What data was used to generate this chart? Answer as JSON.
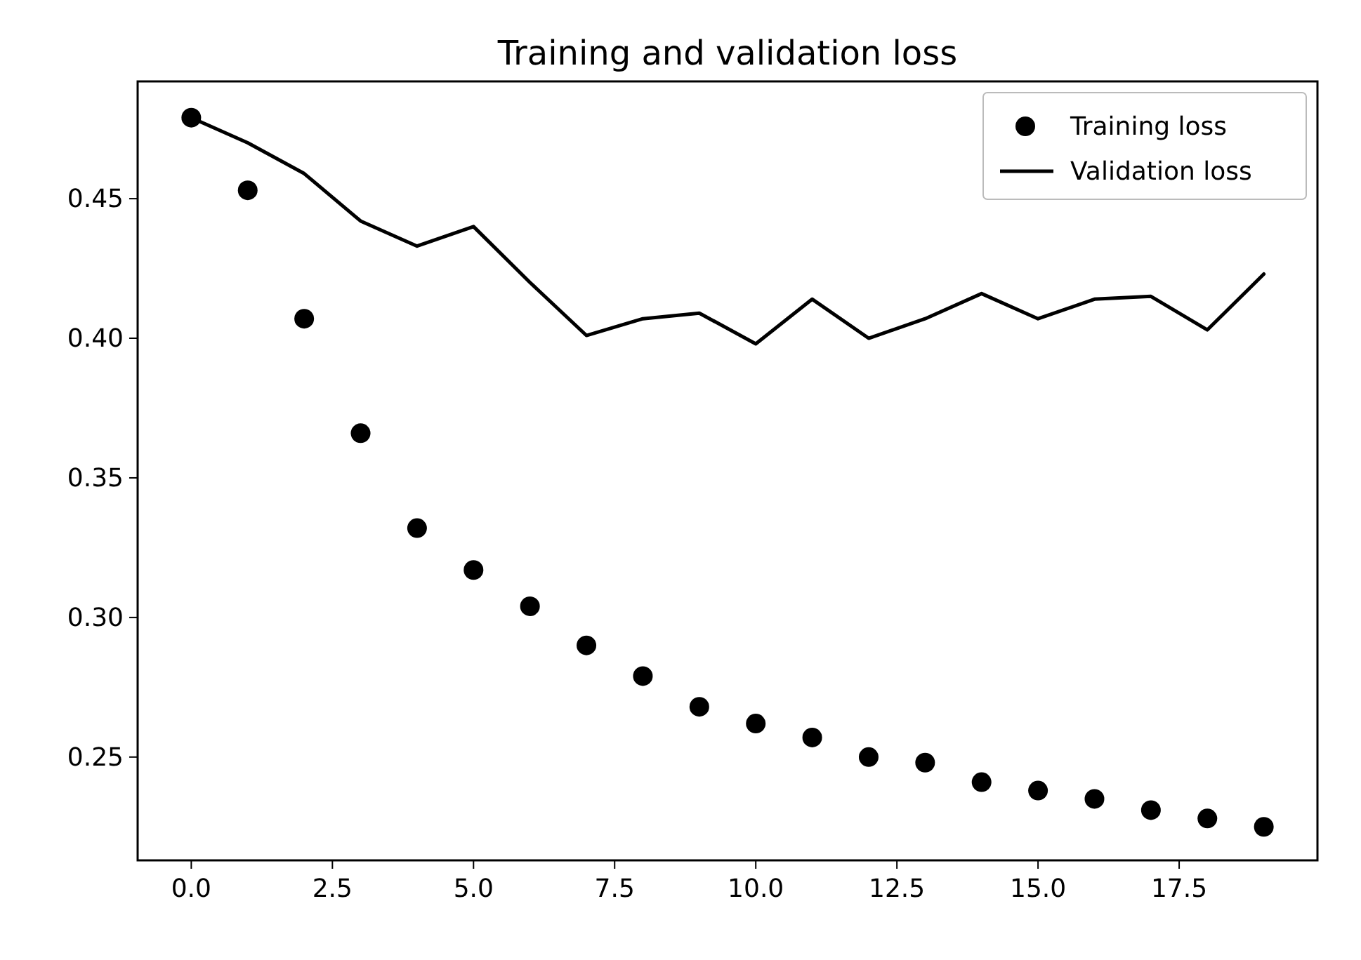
{
  "chart_data": {
    "type": "line",
    "title": "Training and validation loss",
    "x": [
      0,
      1,
      2,
      3,
      4,
      5,
      6,
      7,
      8,
      9,
      10,
      11,
      12,
      13,
      14,
      15,
      16,
      17,
      18,
      19
    ],
    "series": [
      {
        "name": "Training loss",
        "type": "scatter",
        "marker": "circle",
        "color": "#000000",
        "values": [
          0.479,
          0.453,
          0.407,
          0.366,
          0.332,
          0.317,
          0.304,
          0.29,
          0.279,
          0.268,
          0.262,
          0.257,
          0.25,
          0.248,
          0.241,
          0.238,
          0.235,
          0.231,
          0.228,
          0.225
        ]
      },
      {
        "name": "Validation loss",
        "line_style": "solid",
        "color": "#000000",
        "values": [
          0.479,
          0.47,
          0.459,
          0.442,
          0.433,
          0.44,
          0.42,
          0.401,
          0.407,
          0.409,
          0.398,
          0.414,
          0.4,
          0.407,
          0.416,
          0.407,
          0.414,
          0.415,
          0.403,
          0.423
        ]
      }
    ],
    "xlim": [
      -0.95,
      19.95
    ],
    "ylim": [
      0.213,
      0.492
    ],
    "xticks": [
      {
        "value": 0,
        "label": "0.0"
      },
      {
        "value": 2.5,
        "label": "2.5"
      },
      {
        "value": 5,
        "label": "5.0"
      },
      {
        "value": 7.5,
        "label": "7.5"
      },
      {
        "value": 10,
        "label": "10.0"
      },
      {
        "value": 12.5,
        "label": "12.5"
      },
      {
        "value": 15,
        "label": "15.0"
      },
      {
        "value": 17.5,
        "label": "17.5"
      }
    ],
    "yticks": [
      {
        "value": 0.25,
        "label": "0.25"
      },
      {
        "value": 0.3,
        "label": "0.30"
      },
      {
        "value": 0.35,
        "label": "0.35"
      },
      {
        "value": 0.4,
        "label": "0.40"
      },
      {
        "value": 0.45,
        "label": "0.45"
      }
    ],
    "legend": "top right",
    "grid": false
  }
}
